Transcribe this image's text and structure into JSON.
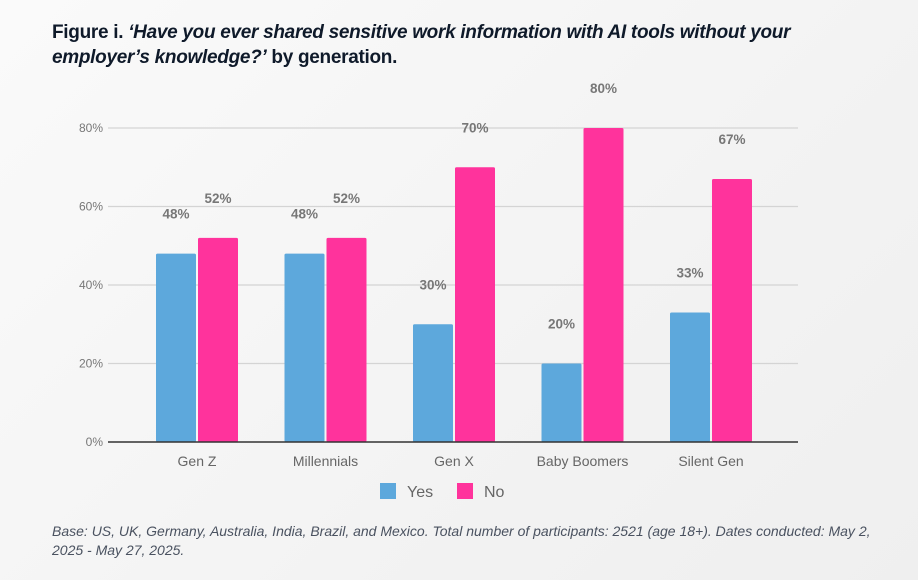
{
  "title": {
    "prefix": "Figure i. ",
    "question": "‘Have you ever shared sensitive work information with AI tools without your employer’s knowledge?’",
    "suffix": " by generation."
  },
  "chart_data": {
    "type": "bar",
    "title": "Figure i. ‘Have you ever shared sensitive work information with AI tools without your employer’s knowledge?’ by generation.",
    "categories": [
      "Gen Z",
      "Millennials",
      "Gen X",
      "Baby Boomers",
      "Silent Gen"
    ],
    "series": [
      {
        "name": "Yes",
        "values": [
          48,
          48,
          30,
          20,
          33
        ],
        "color": "#5da8dc",
        "labels": [
          "48%",
          "48%",
          "30%",
          "20%",
          "33%"
        ]
      },
      {
        "name": "No",
        "values": [
          52,
          52,
          70,
          80,
          67
        ],
        "color": "#ff339c",
        "labels": [
          "52%",
          "52%",
          "70%",
          "80%",
          "67%"
        ]
      }
    ],
    "ylim": [
      0,
      80
    ],
    "yticks": [
      0,
      20,
      40,
      60,
      80
    ],
    "ytick_labels": [
      "0%",
      "20%",
      "40%",
      "60%",
      "80%"
    ],
    "xlabel": "",
    "ylabel": "",
    "grid": true,
    "legend": "bottom"
  },
  "note": "Base: US, UK, Germany, Australia, India, Brazil, and Mexico. Total number of participants: 2521 (age 18+). Dates conducted: May 2, 2025 - May 27, 2025."
}
